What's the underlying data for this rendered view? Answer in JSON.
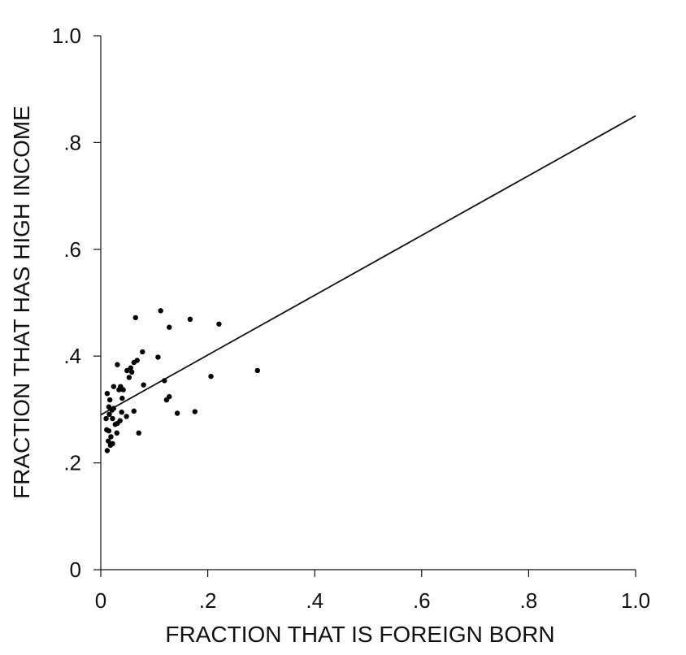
{
  "chart_data": {
    "type": "scatter",
    "title": "",
    "xlabel": "FRACTION THAT IS FOREIGN BORN",
    "ylabel": "FRACTION THAT HAS HIGH INCOME",
    "xlim": [
      0,
      1.0
    ],
    "ylim": [
      0,
      1.0
    ],
    "x_ticks": [
      0,
      0.2,
      0.4,
      0.6,
      0.8,
      1.0
    ],
    "x_tick_labels": [
      "0",
      ".2",
      ".4",
      ".6",
      ".8",
      "1.0"
    ],
    "y_ticks": [
      0,
      0.2,
      0.4,
      0.6,
      0.8,
      1.0
    ],
    "y_tick_labels": [
      "0",
      ".2",
      ".4",
      ".6",
      ".8",
      "1.0"
    ],
    "grid": false,
    "legend": "none",
    "fit_line": {
      "x": [
        0,
        1.0
      ],
      "y": [
        0.29,
        0.85
      ]
    },
    "points": [
      {
        "x": 0.065,
        "y": 0.472
      },
      {
        "x": 0.112,
        "y": 0.485
      },
      {
        "x": 0.167,
        "y": 0.469
      },
      {
        "x": 0.221,
        "y": 0.46
      },
      {
        "x": 0.128,
        "y": 0.454
      },
      {
        "x": 0.078,
        "y": 0.408
      },
      {
        "x": 0.107,
        "y": 0.398
      },
      {
        "x": 0.068,
        "y": 0.392
      },
      {
        "x": 0.062,
        "y": 0.388
      },
      {
        "x": 0.031,
        "y": 0.384
      },
      {
        "x": 0.056,
        "y": 0.378
      },
      {
        "x": 0.049,
        "y": 0.373
      },
      {
        "x": 0.058,
        "y": 0.37
      },
      {
        "x": 0.293,
        "y": 0.373
      },
      {
        "x": 0.053,
        "y": 0.36
      },
      {
        "x": 0.206,
        "y": 0.362
      },
      {
        "x": 0.119,
        "y": 0.354
      },
      {
        "x": 0.08,
        "y": 0.346
      },
      {
        "x": 0.024,
        "y": 0.343
      },
      {
        "x": 0.037,
        "y": 0.343
      },
      {
        "x": 0.034,
        "y": 0.337
      },
      {
        "x": 0.042,
        "y": 0.337
      },
      {
        "x": 0.012,
        "y": 0.33
      },
      {
        "x": 0.128,
        "y": 0.324
      },
      {
        "x": 0.04,
        "y": 0.321
      },
      {
        "x": 0.017,
        "y": 0.318
      },
      {
        "x": 0.123,
        "y": 0.318
      },
      {
        "x": 0.015,
        "y": 0.305
      },
      {
        "x": 0.024,
        "y": 0.302
      },
      {
        "x": 0.021,
        "y": 0.299
      },
      {
        "x": 0.062,
        "y": 0.297
      },
      {
        "x": 0.039,
        "y": 0.295
      },
      {
        "x": 0.143,
        "y": 0.293
      },
      {
        "x": 0.176,
        "y": 0.296
      },
      {
        "x": 0.016,
        "y": 0.291
      },
      {
        "x": 0.048,
        "y": 0.287
      },
      {
        "x": 0.01,
        "y": 0.283
      },
      {
        "x": 0.022,
        "y": 0.283
      },
      {
        "x": 0.036,
        "y": 0.279
      },
      {
        "x": 0.031,
        "y": 0.274
      },
      {
        "x": 0.027,
        "y": 0.272
      },
      {
        "x": 0.011,
        "y": 0.262
      },
      {
        "x": 0.015,
        "y": 0.26
      },
      {
        "x": 0.071,
        "y": 0.256
      },
      {
        "x": 0.03,
        "y": 0.256
      },
      {
        "x": 0.019,
        "y": 0.249
      },
      {
        "x": 0.014,
        "y": 0.241
      },
      {
        "x": 0.022,
        "y": 0.236
      },
      {
        "x": 0.018,
        "y": 0.233
      },
      {
        "x": 0.012,
        "y": 0.223
      }
    ]
  }
}
